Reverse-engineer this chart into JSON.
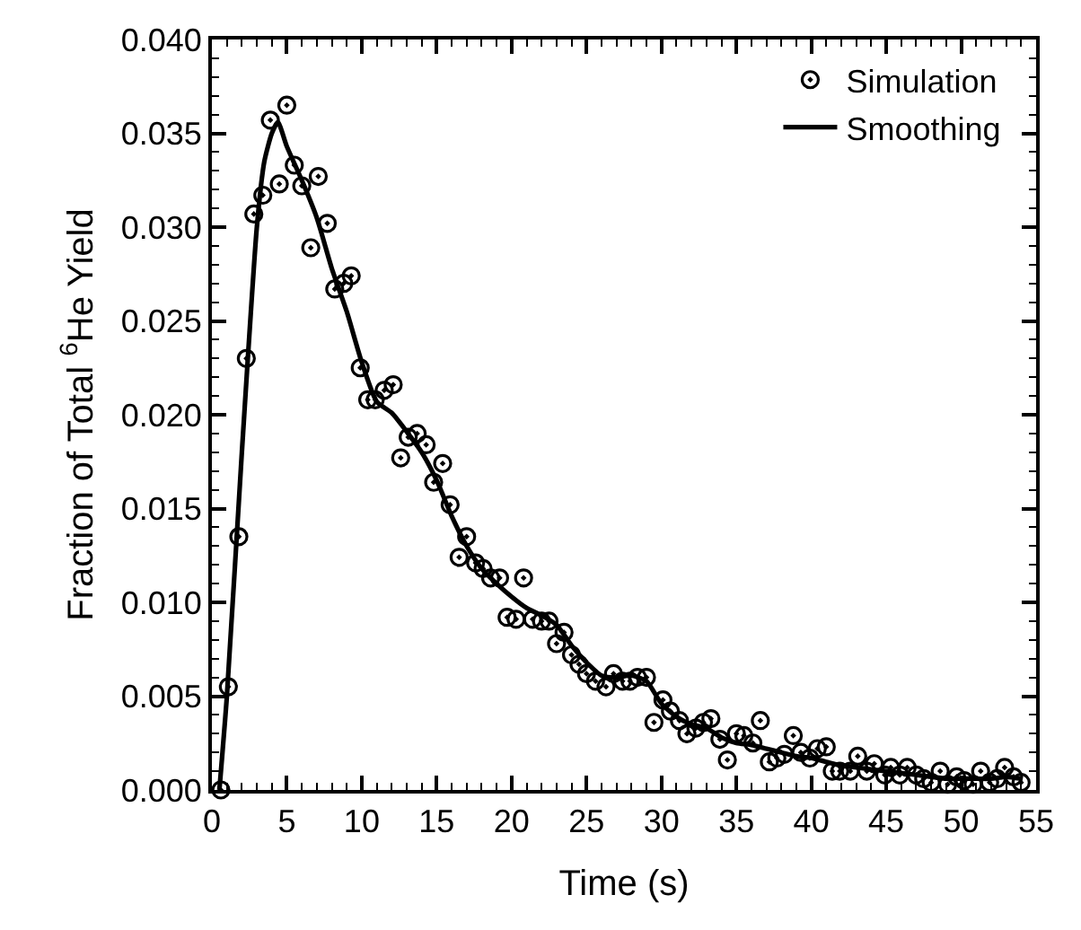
{
  "chart_data": {
    "type": "scatter",
    "xlabel": "Time (s)",
    "ylabel": "Fraction of Total $^{6}$He Yield",
    "xlim": [
      0,
      55
    ],
    "xticks": [
      0,
      5,
      10,
      15,
      20,
      25,
      30,
      35,
      40,
      45,
      50,
      55
    ],
    "ylim": [
      0,
      0.04
    ],
    "yticks": [
      {
        "value": 0,
        "label": "0.000"
      },
      {
        "value": 0.005,
        "label": "0.005"
      },
      {
        "value": 0.01,
        "label": "0.010"
      },
      {
        "value": 0.015,
        "label": "0.015"
      },
      {
        "value": 0.02,
        "label": "0.020"
      },
      {
        "value": 0.025,
        "label": "0.025"
      },
      {
        "value": 0.03,
        "label": "0.030"
      },
      {
        "value": 0.035,
        "label": "0.035"
      },
      {
        "value": 0.04,
        "label": "0.040"
      }
    ],
    "legend": "top right",
    "series": [
      {
        "name": "Simulation",
        "marker": "circle",
        "color": "#000000",
        "x": [
          0.6,
          1.1,
          1.8,
          2.3,
          2.8,
          3.4,
          3.9,
          4.5,
          5.0,
          5.5,
          6.0,
          6.6,
          7.1,
          7.7,
          8.2,
          8.8,
          9.3,
          9.9,
          10.4,
          10.9,
          11.5,
          12.1,
          12.6,
          13.1,
          13.7,
          14.3,
          14.8,
          15.4,
          15.9,
          16.5,
          17.0,
          17.6,
          18.1,
          18.6,
          19.2,
          19.7,
          20.3,
          20.8,
          21.4,
          22.0,
          22.5,
          23.0,
          23.5,
          24.0,
          24.5,
          25.0,
          25.6,
          26.3,
          26.8,
          27.4,
          27.9,
          28.4,
          29.0,
          29.5,
          30.1,
          30.6,
          31.2,
          31.7,
          32.3,
          32.8,
          33.3,
          33.9,
          34.4,
          35.0,
          35.5,
          36.1,
          36.6,
          37.2,
          37.7,
          38.2,
          38.8,
          39.3,
          39.9,
          40.4,
          41.0,
          41.4,
          41.9,
          42.6,
          43.1,
          43.7,
          44.2,
          44.9,
          45.3,
          45.9,
          46.4,
          47.0,
          47.5,
          48.0,
          48.6,
          49.1,
          49.7,
          50.2,
          50.8,
          51.3,
          51.9,
          52.4,
          52.9,
          53.5,
          54.0
        ],
        "values": [
          0.0,
          0.0055,
          0.0135,
          0.023,
          0.0307,
          0.0317,
          0.0357,
          0.0323,
          0.0365,
          0.0333,
          0.0322,
          0.0289,
          0.0327,
          0.0302,
          0.0267,
          0.027,
          0.0274,
          0.0225,
          0.0208,
          0.0208,
          0.0213,
          0.0216,
          0.0177,
          0.0188,
          0.019,
          0.0184,
          0.0164,
          0.0174,
          0.0152,
          0.0124,
          0.0135,
          0.0121,
          0.0118,
          0.0113,
          0.0113,
          0.0092,
          0.0091,
          0.0113,
          0.0091,
          0.009,
          0.009,
          0.0078,
          0.0084,
          0.0072,
          0.0067,
          0.0062,
          0.0058,
          0.0055,
          0.0062,
          0.0058,
          0.0058,
          0.006,
          0.006,
          0.0036,
          0.0048,
          0.0042,
          0.0037,
          0.003,
          0.0033,
          0.0036,
          0.0038,
          0.0027,
          0.0016,
          0.003,
          0.0029,
          0.0025,
          0.0037,
          0.0015,
          0.0017,
          0.0019,
          0.0029,
          0.002,
          0.0017,
          0.0022,
          0.0023,
          0.001,
          0.001,
          0.001,
          0.0018,
          0.001,
          0.0014,
          0.0008,
          0.0012,
          0.0008,
          0.0012,
          0.0008,
          0.0006,
          0.0004,
          0.001,
          0.0003,
          0.0007,
          0.0005,
          0.0003,
          0.001,
          0.0004,
          0.0006,
          0.0012,
          0.0007,
          0.0004
        ]
      },
      {
        "name": "Smoothing",
        "type": "line",
        "marker": "none",
        "line_style": "solid",
        "color": "#000000",
        "x": [
          0.5,
          1,
          2,
          3,
          3.5,
          4,
          4.4,
          5,
          6,
          7,
          8,
          9,
          10,
          11,
          12,
          13,
          14,
          15,
          16,
          17,
          18,
          19,
          20,
          21,
          22,
          23,
          24,
          25,
          26,
          27,
          28,
          29,
          30,
          31,
          32,
          33,
          34,
          35,
          36,
          37,
          38,
          39,
          40,
          41,
          42,
          43,
          44,
          45,
          46,
          47,
          48,
          49,
          50,
          51,
          52,
          53,
          54
        ],
        "values": [
          0.0,
          0.005,
          0.018,
          0.03,
          0.0335,
          0.035,
          0.0356,
          0.0343,
          0.0325,
          0.0305,
          0.0278,
          0.0255,
          0.0228,
          0.0207,
          0.0201,
          0.0191,
          0.018,
          0.0165,
          0.0146,
          0.013,
          0.0118,
          0.011,
          0.0103,
          0.0097,
          0.0093,
          0.0088,
          0.0077,
          0.0068,
          0.0061,
          0.006,
          0.0061,
          0.0058,
          0.0046,
          0.0039,
          0.0035,
          0.0033,
          0.0028,
          0.0025,
          0.0024,
          0.0022,
          0.002,
          0.0018,
          0.0017,
          0.0015,
          0.0013,
          0.0012,
          0.0011,
          0.001,
          0.0009,
          0.0008,
          0.0007,
          0.0006,
          0.0006,
          0.0006,
          0.0006,
          0.0007,
          0.0006
        ]
      }
    ]
  }
}
